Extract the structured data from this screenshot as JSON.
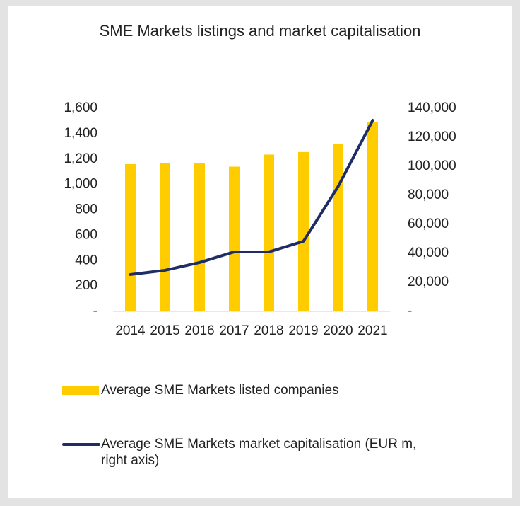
{
  "chart_data": {
    "type": "bar-line",
    "title": "SME Markets listings and market capitalisation",
    "categories": [
      "2014",
      "2015",
      "2016",
      "2017",
      "2018",
      "2019",
      "2020",
      "2021"
    ],
    "series": [
      {
        "name": "Average SME Markets listed companies",
        "type": "bar",
        "color": "#ffcc00",
        "axis": "y",
        "values": [
          1160,
          1170,
          1165,
          1140,
          1235,
          1255,
          1320,
          1490
        ]
      },
      {
        "name": "Average SME Markets market capitalisation (EUR m, right axis)",
        "type": "line",
        "color": "#1f2d66",
        "axis": "y2",
        "values": [
          25400,
          28300,
          33700,
          41000,
          41000,
          48300,
          86000,
          131700
        ]
      }
    ],
    "ylim": [
      0,
      1600
    ],
    "yticks": [
      {
        "value": 0,
        "label": "-"
      },
      200,
      400,
      600,
      800,
      {
        "value": 1000,
        "label": "1,000"
      },
      {
        "value": 1200,
        "label": "1,200"
      },
      {
        "value": 1400,
        "label": "1,400"
      },
      {
        "value": 1600,
        "label": "1,600"
      }
    ],
    "y2lim": [
      0,
      140000
    ],
    "y2ticks": [
      {
        "value": 0,
        "label": "-"
      },
      {
        "value": 20000,
        "label": "20,000"
      },
      {
        "value": 40000,
        "label": "40,000"
      },
      {
        "value": 60000,
        "label": "60,000"
      },
      {
        "value": 80000,
        "label": "80,000"
      },
      {
        "value": 100000,
        "label": "100,000"
      },
      {
        "value": 120000,
        "label": "120,000"
      },
      {
        "value": 140000,
        "label": "140,000"
      }
    ],
    "grid": false
  }
}
